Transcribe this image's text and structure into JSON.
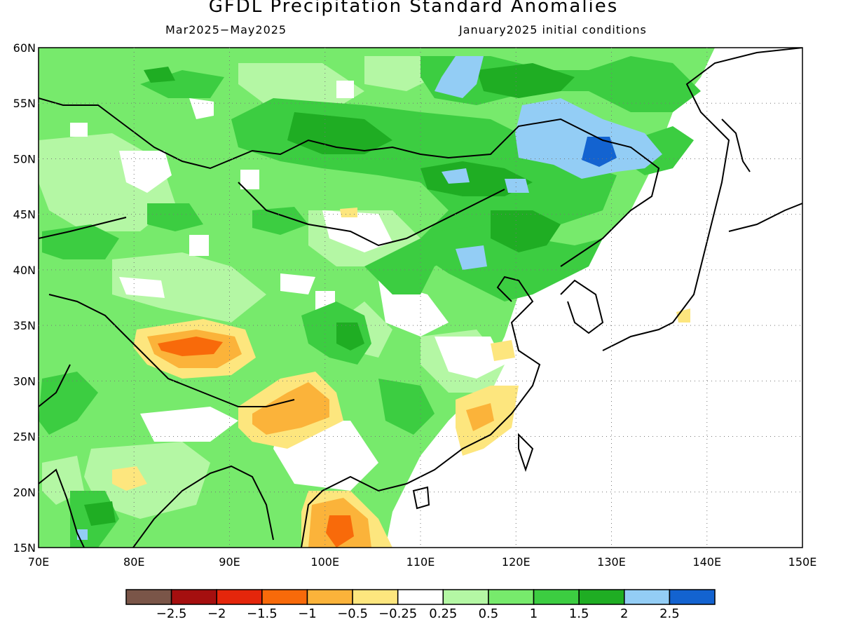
{
  "title": "GFDL Precipitation Standard Anomalies",
  "subtitle_left": "Mar2025−May2025",
  "subtitle_right": "January2025 initial conditions",
  "map": {
    "region": "East Asia",
    "lon_range": [
      70,
      150
    ],
    "lat_range": [
      15,
      60
    ],
    "gridlines": "dotted",
    "lat_labels": [
      "15N",
      "20N",
      "25N",
      "30N",
      "35N",
      "40N",
      "45N",
      "50N",
      "55N",
      "60N"
    ],
    "lon_labels": [
      "70E",
      "80E",
      "90E",
      "100E",
      "110E",
      "120E",
      "130E",
      "140E",
      "150E"
    ]
  },
  "colorbar": {
    "colors": [
      "#7a5548",
      "#a50f0f",
      "#e4260b",
      "#f86a0a",
      "#fbb33a",
      "#fde67e",
      "#ffffff",
      "#b4f7a4",
      "#77ea6c",
      "#3ccd41",
      "#1fad23",
      "#93cdf5",
      "#1363d0"
    ],
    "labels": [
      "−2.5",
      "−2",
      "−1.5",
      "−1",
      "−0.5",
      "−0.25",
      "0.25",
      "0.5",
      "1",
      "1.5",
      "2",
      "2.5"
    ]
  }
}
